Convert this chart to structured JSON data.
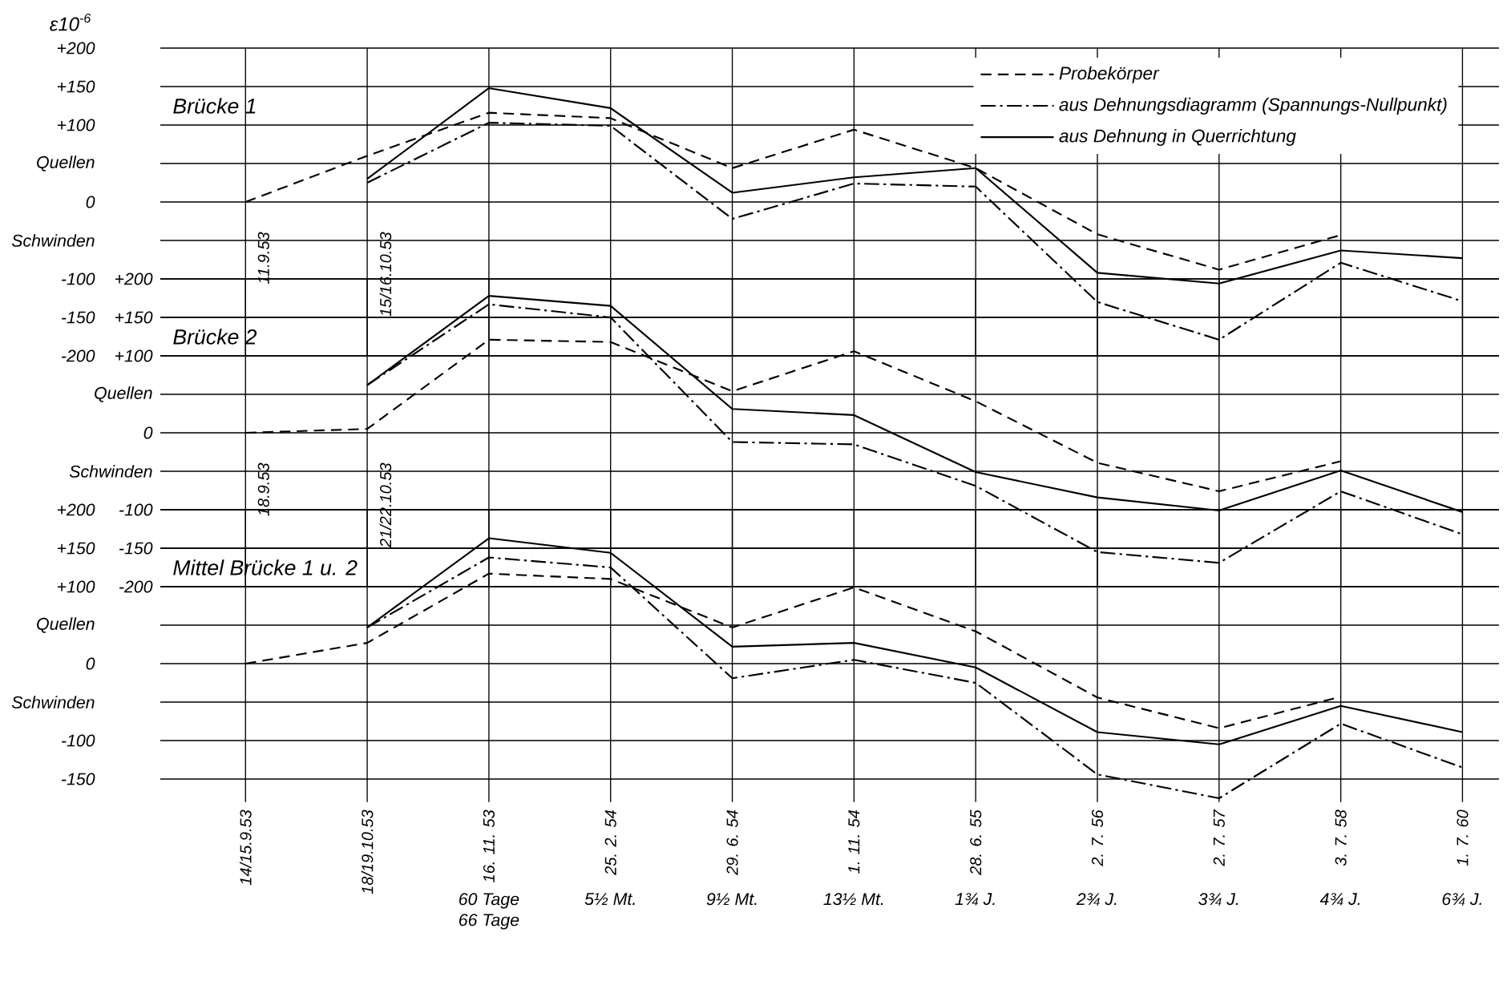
{
  "chart_data": [
    {
      "type": "line",
      "title": "Brücke 1",
      "ylabel": "ε10$^{-6}$",
      "categories": [
        "11.9.53",
        "15/16.10.53",
        null,
        null,
        null,
        null,
        null,
        null,
        null,
        null,
        null
      ],
      "series": [
        {
          "name": "Probekörper",
          "color": "#000000",
          "line_style": "dashed",
          "values": [
            0,
            60,
            116,
            109,
            44,
            94,
            44,
            -42,
            -88,
            -43,
            null
          ]
        },
        {
          "name": "aus Dehnungsdiagramm (Spannungs-Nullpunkt)",
          "color": "#000000",
          "line_style": "dashdotted",
          "values": [
            null,
            25,
            103,
            99,
            -22,
            24,
            20,
            -130,
            -179,
            -79,
            -129
          ]
        },
        {
          "name": "aus Dehnung in Querrichtung",
          "color": "#000000",
          "line_style": "solid",
          "values": [
            null,
            30,
            148,
            122,
            12,
            32,
            44,
            -92,
            -106,
            -63,
            -73
          ]
        }
      ],
      "ylim": [
        -200,
        200
      ],
      "yticks": [
        {
          "value": 200,
          "label": "+200"
        },
        {
          "value": 150,
          "label": "+150"
        },
        {
          "value": 100,
          "label": "+100"
        },
        {
          "value": 50,
          "label": "Quellen"
        },
        0,
        {
          "value": -50,
          "label": "Schwinden"
        },
        -100,
        -150,
        -200
      ],
      "grid": true,
      "legend": "top right"
    },
    {
      "type": "line",
      "title": "Brücke 2",
      "categories": [
        "18.9.53",
        "21/22.10.53",
        null,
        null,
        null,
        null,
        null,
        null,
        null,
        null,
        null
      ],
      "series": [
        {
          "color": "#000000",
          "line_style": "dashed",
          "values": [
            0,
            5,
            121,
            118,
            54,
            106,
            41,
            -39,
            -76,
            -37,
            null
          ]
        },
        {
          "color": "#000000",
          "line_style": "dashdotted",
          "values": [
            null,
            62,
            167,
            150,
            -12,
            -15,
            -69,
            -155,
            -169,
            -76,
            -132
          ]
        },
        {
          "color": "#000000",
          "line_style": "solid",
          "values": [
            null,
            62,
            178,
            165,
            31,
            23,
            -51,
            -84,
            -101,
            -49,
            -103
          ]
        }
      ],
      "ylim": [
        -200,
        200
      ],
      "yticks": [
        {
          "value": 200,
          "label": "+200"
        },
        {
          "value": 150,
          "label": "+150"
        },
        {
          "value": 100,
          "label": "+100"
        },
        {
          "value": 50,
          "label": "Quellen"
        },
        0,
        {
          "value": -50,
          "label": "Schwinden"
        },
        -100,
        -150,
        -200
      ],
      "grid": true
    },
    {
      "type": "line",
      "title": "Mittel Brücke 1 u. 2",
      "categories": [
        "14/15.9.53",
        "18/19.10.53",
        "16. 11. 53",
        "25. 2. 54",
        "29. 6. 54",
        "1. 11. 54",
        "28. 6. 55",
        "2. 7. 56",
        "2. 7. 57",
        "3. 7. 58",
        "1. 7. 60"
      ],
      "series": [
        {
          "color": "#000000",
          "line_style": "dashed",
          "values": [
            0,
            27,
            117,
            110,
            47,
            99,
            42,
            -44,
            -84,
            -43,
            null
          ]
        },
        {
          "color": "#000000",
          "line_style": "dashdotted",
          "values": [
            null,
            47,
            138,
            125,
            -19,
            5,
            -25,
            -144,
            -175,
            -78,
            -135
          ]
        },
        {
          "color": "#000000",
          "line_style": "solid",
          "values": [
            null,
            47,
            163,
            144,
            22,
            27,
            -5,
            -89,
            -105,
            -55,
            -89
          ]
        }
      ],
      "ylim": [
        -180,
        200
      ],
      "yticks": [
        {
          "value": 200,
          "label": "+200"
        },
        {
          "value": 150,
          "label": "+150"
        },
        {
          "value": 100,
          "label": "+100"
        },
        {
          "value": 50,
          "label": "Quellen"
        },
        0,
        {
          "value": -50,
          "label": "Schwinden"
        },
        -100,
        -150
      ],
      "grid": true,
      "annotations": [
        "60 Tage",
        "66 Tage",
        "5½ Mt.",
        "9½ Mt.",
        "13½ Mt.",
        "1¾ J.",
        "2¾ J.",
        "3¾ J.",
        "4¾ J.",
        "6¾ J."
      ]
    }
  ]
}
